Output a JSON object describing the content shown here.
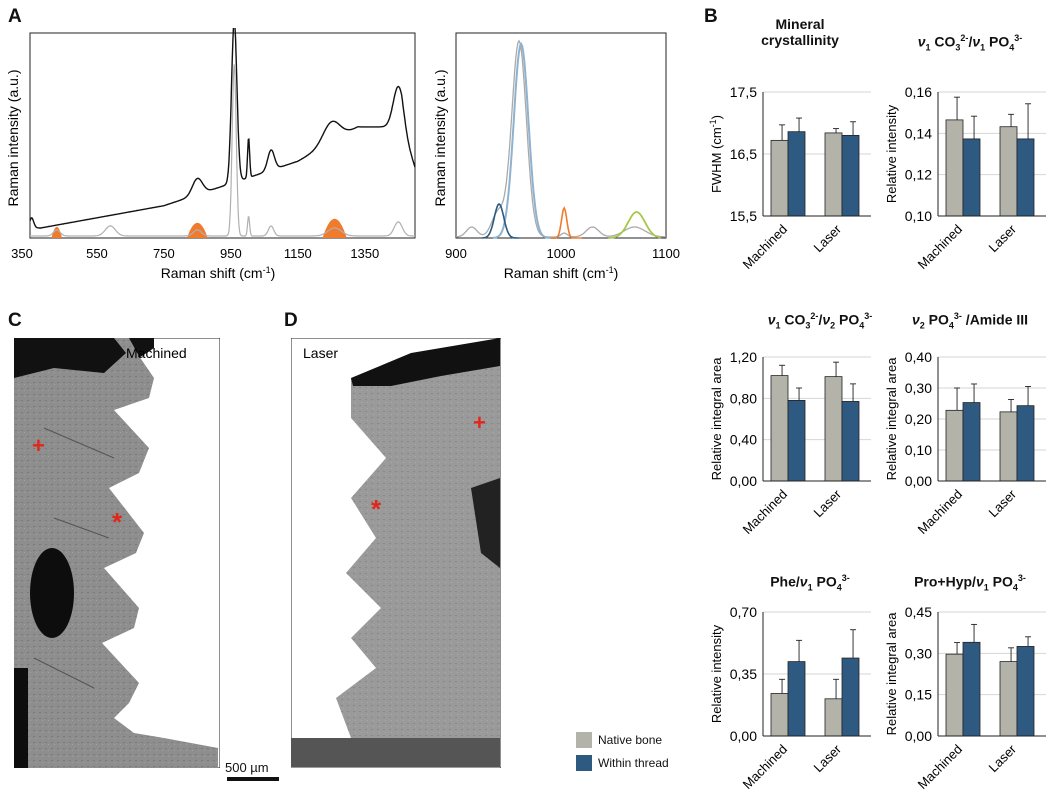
{
  "panel_labels": {
    "a": "A",
    "b": "B",
    "c": "C",
    "d": "D"
  },
  "colors": {
    "native": "#b3b3aa",
    "thread": "#2e5a82",
    "orange": "#f07b2d",
    "raman": "#111111",
    "ref": "#b0b0b0"
  },
  "chart_data": [
    {
      "id": "A1",
      "type": "line",
      "xlabel": "Raman shift (cm-1)",
      "ylabel": "Raman intensity (a.u.)",
      "x_ticks": [
        "350",
        "550",
        "750",
        "950",
        "1150",
        "1350"
      ],
      "xlim": [
        350,
        1500
      ],
      "series": [
        {
          "name": "spectrum"
        },
        {
          "name": "reference"
        }
      ]
    },
    {
      "id": "A2",
      "type": "line",
      "xlabel": "Raman shift (cm-1)",
      "ylabel": "Raman intensity (a.u.)",
      "x_ticks": [
        "900",
        "1000",
        "1100"
      ],
      "xlim": [
        900,
        1100
      ]
    },
    {
      "id": "B1",
      "type": "bar",
      "title": "Mineral crystallinity",
      "ylabel": "FWHM (cm-1)",
      "categories": [
        "Machined",
        "Laser"
      ],
      "y_ticks": [
        "15,5",
        "16,5",
        "17,5"
      ],
      "ylim": [
        15.5,
        17.5
      ],
      "series": [
        {
          "name": "Native bone",
          "values": [
            16.72,
            16.84
          ],
          "err": [
            0.25,
            0.07
          ]
        },
        {
          "name": "Within thread",
          "values": [
            16.86,
            16.8
          ],
          "err": [
            0.22,
            0.22
          ]
        }
      ]
    },
    {
      "id": "B2",
      "type": "bar",
      "title": "ν1 CO3 2- / ν1 PO4 3-",
      "ylabel": "Relative intensity",
      "categories": [
        "Machined",
        "Laser"
      ],
      "y_ticks": [
        "0,10",
        "0,12",
        "0,14",
        "0,16"
      ],
      "ylim": [
        0.1,
        0.16
      ],
      "series": [
        {
          "name": "Native bone",
          "values": [
            0.1465,
            0.1432
          ],
          "err": [
            0.011,
            0.006
          ]
        },
        {
          "name": "Within thread",
          "values": [
            0.1373,
            0.1373
          ],
          "err": [
            0.011,
            0.017
          ]
        }
      ]
    },
    {
      "id": "B3",
      "type": "bar",
      "title": "ν1 CO3 2- / ν2 PO4 3-",
      "ylabel": "Relative integral area",
      "categories": [
        "Machined",
        "Laser"
      ],
      "y_ticks": [
        "0,00",
        "0,40",
        "0,80",
        "1,20"
      ],
      "ylim": [
        0,
        1.2
      ],
      "series": [
        {
          "name": "Native bone",
          "values": [
            1.02,
            1.01
          ],
          "err": [
            0.1,
            0.14
          ]
        },
        {
          "name": "Within thread",
          "values": [
            0.78,
            0.77
          ],
          "err": [
            0.12,
            0.17
          ]
        }
      ]
    },
    {
      "id": "B4",
      "type": "bar",
      "title": "ν2 PO4 3- /Amide III",
      "ylabel": "Relative integral area",
      "categories": [
        "Machined",
        "Laser"
      ],
      "y_ticks": [
        "0,00",
        "0,10",
        "0,20",
        "0,30",
        "0,40"
      ],
      "ylim": [
        0,
        0.4
      ],
      "series": [
        {
          "name": "Native bone",
          "values": [
            0.228,
            0.223
          ],
          "err": [
            0.072,
            0.04
          ]
        },
        {
          "name": "Within thread",
          "values": [
            0.253,
            0.243
          ],
          "err": [
            0.06,
            0.062
          ]
        }
      ]
    },
    {
      "id": "B5",
      "type": "bar",
      "title": "Phe / ν1 PO4 3-",
      "ylabel": "Relative intensity",
      "categories": [
        "Machined",
        "Laser"
      ],
      "y_ticks": [
        "0,00",
        "0,35",
        "0,70"
      ],
      "ylim": [
        0,
        0.7
      ],
      "series": [
        {
          "name": "Native bone",
          "values": [
            0.24,
            0.21
          ],
          "err": [
            0.08,
            0.11
          ]
        },
        {
          "name": "Within thread",
          "values": [
            0.42,
            0.44
          ],
          "err": [
            0.12,
            0.16
          ]
        }
      ]
    },
    {
      "id": "B6",
      "type": "bar",
      "title": "Pro+Hyp / ν1 PO4 3-",
      "ylabel": "Relative integral area",
      "categories": [
        "Machined",
        "Laser"
      ],
      "y_ticks": [
        "0,00",
        "0,15",
        "0,30",
        "0,45"
      ],
      "ylim": [
        0,
        0.45
      ],
      "series": [
        {
          "name": "Native bone",
          "values": [
            0.297,
            0.27
          ],
          "err": [
            0.042,
            0.05
          ]
        },
        {
          "name": "Within thread",
          "values": [
            0.34,
            0.325
          ],
          "err": [
            0.065,
            0.035
          ]
        }
      ]
    }
  ],
  "images": {
    "machined_label": "Machined",
    "laser_label": "Laser",
    "scale_bar": "500 µm"
  },
  "legend": {
    "native": "Native bone",
    "thread": "Within thread"
  }
}
